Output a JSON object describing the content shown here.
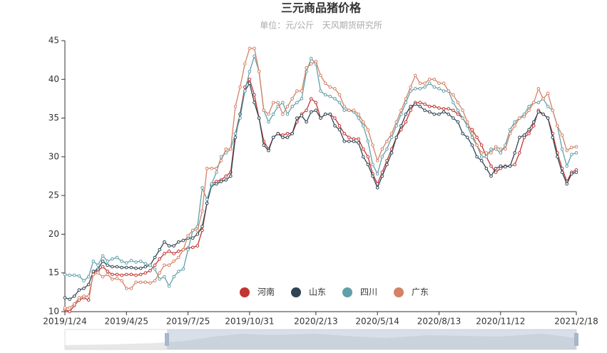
{
  "chart_data": {
    "type": "line",
    "title": "三元商品猪价格",
    "subtitle": "单位：元/公斤   天风期货研究所",
    "categories": [
      "2019/1/24",
      null,
      null,
      null,
      null,
      null,
      null,
      null,
      null,
      null,
      null,
      null,
      null,
      "2019/4/25",
      null,
      null,
      null,
      null,
      null,
      null,
      null,
      null,
      null,
      null,
      null,
      null,
      "2019/7/25",
      null,
      null,
      null,
      null,
      null,
      null,
      null,
      null,
      null,
      null,
      null,
      null,
      "2019/10/31",
      null,
      null,
      null,
      null,
      null,
      null,
      null,
      null,
      null,
      null,
      null,
      null,
      null,
      "2020/2/13",
      null,
      null,
      null,
      null,
      null,
      null,
      null,
      null,
      null,
      null,
      null,
      null,
      "2020/5/14",
      null,
      null,
      null,
      null,
      null,
      null,
      null,
      null,
      null,
      null,
      null,
      null,
      "2020/8/13",
      null,
      null,
      null,
      null,
      null,
      null,
      null,
      null,
      null,
      null,
      null,
      null,
      "2020/11/12",
      null,
      null,
      null,
      null,
      null,
      null,
      null,
      null,
      null,
      null,
      null,
      null,
      null,
      null,
      null,
      "2021/2/18"
    ],
    "series": [
      {
        "name": "河南",
        "color": "#c23531",
        "values": [
          10.3,
          10.0,
          10.8,
          11.5,
          11.8,
          11.5,
          15.0,
          15.3,
          15.8,
          15.2,
          14.8,
          14.8,
          14.7,
          14.8,
          14.8,
          14.7,
          14.8,
          15.0,
          15.3,
          16.0,
          16.8,
          17.5,
          17.8,
          17.5,
          17.8,
          18.0,
          18.2,
          18.3,
          18.5,
          20.5,
          24.0,
          26.5,
          26.8,
          27.0,
          27.5,
          28.0,
          33.0,
          35.5,
          39.0,
          40.0,
          38.0,
          35.0,
          32.0,
          31.0,
          32.5,
          33.0,
          32.8,
          33.0,
          33.0,
          34.5,
          35.5,
          36.0,
          37.5,
          37.0,
          35.0,
          35.5,
          35.5,
          35.0,
          34.0,
          33.0,
          32.5,
          32.3,
          32.3,
          31.0,
          30.0,
          27.8,
          26.5,
          28.0,
          29.5,
          31.0,
          32.5,
          33.5,
          34.5,
          36.0,
          37.0,
          37.0,
          36.8,
          36.5,
          36.5,
          36.3,
          36.2,
          36.2,
          36.0,
          35.5,
          35.0,
          34.0,
          33.5,
          32.5,
          31.5,
          30.0,
          28.8,
          28.0,
          28.5,
          28.8,
          28.8,
          29.0,
          30.5,
          32.5,
          33.0,
          34.0,
          36.0,
          35.5,
          35.0,
          33.0,
          30.5,
          28.5,
          26.8,
          28.0,
          28.3
        ]
      },
      {
        "name": "山东",
        "color": "#2f4554",
        "values": [
          11.8,
          11.6,
          12.0,
          12.8,
          13.0,
          13.5,
          15.2,
          15.5,
          16.5,
          16.0,
          15.8,
          15.8,
          15.7,
          15.7,
          15.7,
          15.6,
          15.6,
          15.8,
          16.0,
          17.0,
          18.0,
          19.0,
          18.5,
          18.5,
          19.0,
          19.2,
          19.5,
          19.5,
          20.0,
          21.0,
          24.0,
          26.3,
          26.5,
          26.8,
          27.0,
          27.5,
          32.5,
          35.5,
          38.5,
          39.5,
          37.0,
          35.0,
          31.5,
          30.8,
          32.5,
          33.0,
          32.5,
          32.5,
          33.0,
          35.0,
          35.3,
          34.5,
          35.8,
          36.0,
          35.0,
          35.5,
          35.5,
          34.0,
          33.5,
          32.0,
          32.0,
          32.0,
          31.8,
          30.0,
          29.0,
          27.5,
          26.0,
          27.5,
          29.0,
          30.5,
          32.5,
          34.0,
          35.5,
          36.5,
          36.8,
          36.5,
          36.0,
          35.8,
          35.5,
          35.5,
          35.8,
          35.5,
          35.0,
          34.5,
          33.0,
          32.5,
          31.5,
          30.0,
          29.5,
          28.5,
          27.5,
          28.5,
          28.8,
          28.7,
          28.8,
          30.5,
          32.5,
          32.8,
          33.5,
          34.5,
          35.8,
          35.5,
          35.0,
          32.5,
          30.0,
          28.0,
          26.5,
          27.8,
          28.0
        ]
      },
      {
        "name": "四川",
        "color": "#61a0a8",
        "values": [
          14.8,
          14.7,
          14.7,
          14.6,
          14.0,
          14.5,
          16.5,
          16.0,
          17.2,
          16.5,
          16.8,
          17.0,
          16.5,
          16.3,
          16.6,
          16.4,
          16.5,
          16.2,
          16.0,
          15.5,
          14.2,
          14.5,
          13.3,
          14.5,
          15.2,
          15.5,
          18.0,
          20.5,
          21.0,
          26.0,
          24.5,
          26.5,
          28.0,
          30.0,
          30.5,
          31.0,
          33.0,
          35.0,
          38.5,
          41.0,
          43.0,
          41.0,
          36.0,
          34.5,
          35.5,
          36.5,
          37.0,
          35.5,
          36.5,
          37.0,
          37.5,
          41.0,
          42.7,
          42.0,
          38.5,
          38.0,
          37.8,
          37.5,
          37.0,
          36.0,
          36.0,
          35.8,
          35.0,
          34.0,
          32.0,
          29.0,
          27.8,
          30.0,
          31.0,
          32.5,
          34.0,
          35.5,
          37.0,
          38.5,
          38.8,
          38.8,
          39.0,
          39.5,
          39.0,
          38.8,
          38.5,
          38.5,
          37.0,
          36.0,
          35.0,
          34.0,
          32.5,
          31.5,
          30.0,
          30.0,
          31.0,
          31.0,
          30.5,
          31.5,
          33.5,
          34.5,
          35.0,
          35.5,
          36.5,
          37.0,
          37.0,
          37.5,
          36.5,
          36.0,
          34.0,
          31.0,
          28.8,
          30.3,
          30.5
        ]
      },
      {
        "name": "广东",
        "color": "#d48265",
        "values": [
          10.5,
          10.5,
          11.0,
          11.8,
          12.0,
          12.0,
          14.8,
          15.0,
          14.5,
          14.8,
          14.2,
          14.3,
          14.0,
          13.0,
          13.0,
          13.8,
          13.8,
          13.8,
          13.7,
          14.0,
          15.0,
          16.0,
          16.0,
          16.5,
          17.0,
          18.0,
          19.8,
          20.5,
          20.5,
          23.0,
          28.5,
          28.5,
          28.5,
          29.5,
          31.0,
          31.0,
          36.5,
          39.0,
          42.0,
          44.0,
          44.0,
          41.0,
          36.0,
          35.5,
          37.0,
          37.0,
          35.5,
          36.5,
          37.5,
          38.5,
          38.5,
          41.5,
          42.0,
          42.3,
          40.5,
          39.5,
          39.0,
          38.8,
          38.0,
          36.5,
          36.0,
          36.0,
          35.5,
          34.5,
          33.5,
          31.5,
          29.5,
          31.0,
          32.0,
          33.0,
          34.5,
          36.0,
          37.5,
          39.0,
          40.5,
          39.5,
          39.5,
          40.0,
          40.0,
          39.5,
          39.5,
          38.5,
          38.0,
          37.0,
          36.0,
          34.5,
          33.0,
          31.5,
          30.5,
          30.5,
          30.5,
          31.3,
          31.0,
          31.0,
          33.0,
          34.0,
          35.0,
          35.2,
          36.0,
          37.0,
          38.8,
          37.5,
          38.2,
          36.0,
          34.0,
          32.8,
          30.8,
          31.2,
          31.3
        ]
      }
    ],
    "ylim": [
      10,
      45
    ],
    "yticks": [
      10,
      15,
      20,
      25,
      30,
      35,
      40,
      45
    ],
    "grid": false,
    "legend": "bottom"
  }
}
